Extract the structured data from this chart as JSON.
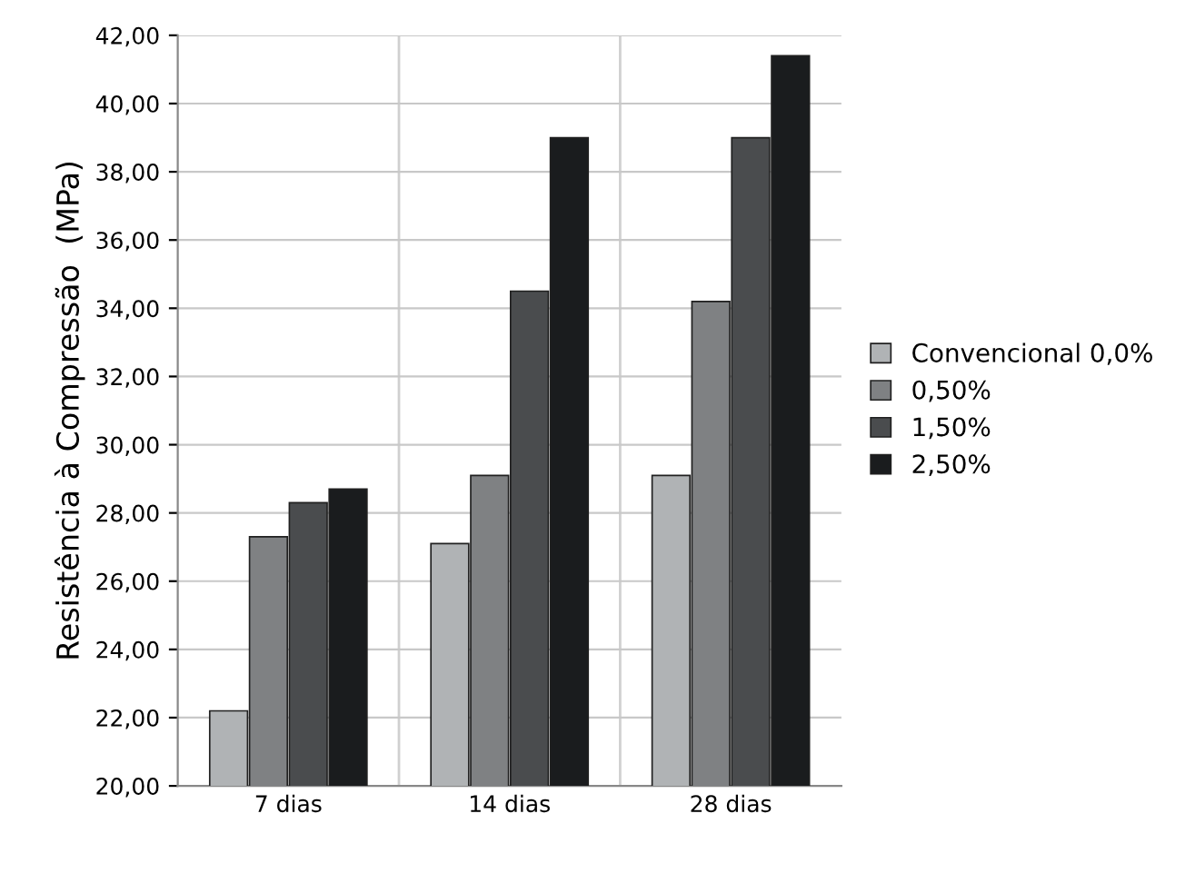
{
  "chart_data": {
    "type": "bar",
    "ylabel": "Resistência à Compressão  (MPa)",
    "categories": [
      "7 dias",
      "14 dias",
      "28 dias"
    ],
    "series": [
      {
        "name": "Convencional 0,0%",
        "color": "#b0b3b5",
        "values": [
          22.2,
          27.1,
          29.1
        ]
      },
      {
        "name": "0,50%",
        "color": "#7f8183",
        "values": [
          27.3,
          29.1,
          34.2
        ]
      },
      {
        "name": "1,50%",
        "color": "#4a4c4e",
        "values": [
          28.3,
          34.5,
          39.0
        ]
      },
      {
        "name": "2,50%",
        "color": "#1a1c1e",
        "values": [
          28.7,
          39.0,
          41.4
        ]
      }
    ],
    "ylim": [
      20,
      42
    ],
    "yticks": [
      {
        "value": 20,
        "label": "20,00"
      },
      {
        "value": 22,
        "label": "22,00"
      },
      {
        "value": 24,
        "label": "24,00"
      },
      {
        "value": 26,
        "label": "26,00"
      },
      {
        "value": 28,
        "label": "28,00"
      },
      {
        "value": 30,
        "label": "30,00"
      },
      {
        "value": 32,
        "label": "32,00"
      },
      {
        "value": 34,
        "label": "34,00"
      },
      {
        "value": 36,
        "label": "36,00"
      },
      {
        "value": 38,
        "label": "38,00"
      },
      {
        "value": 40,
        "label": "40,00"
      },
      {
        "value": 42,
        "label": "42,00"
      }
    ],
    "grid": true,
    "legend": "right"
  }
}
